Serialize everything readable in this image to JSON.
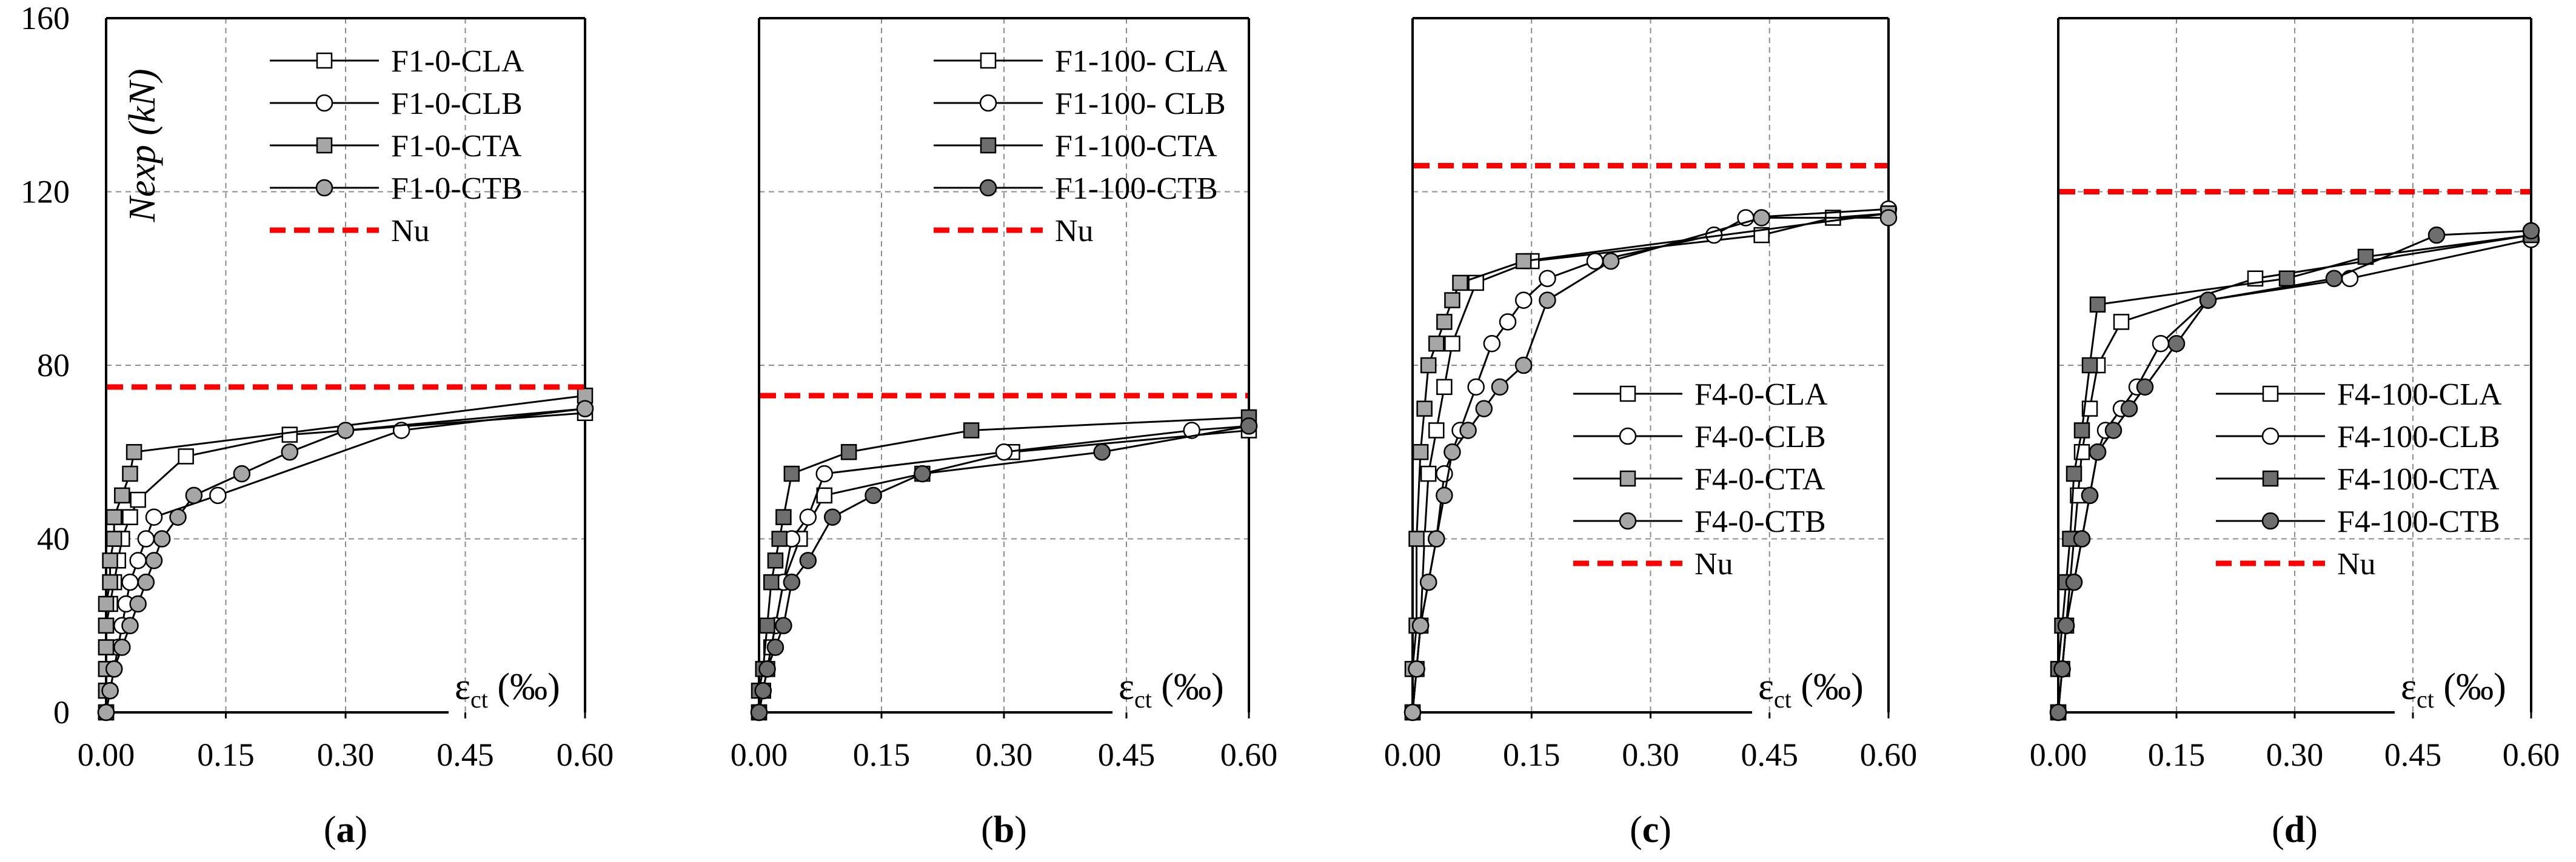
{
  "figure": {
    "y_axis_label": "Nexp (kN)",
    "x_axis_label_main": "ε",
    "x_axis_label_sub": "ct",
    "x_axis_label_unit": " (‰)",
    "colors": {
      "nu_line": "#ff0000",
      "grid": "#8c8c8c",
      "marker_light": "#ffffff",
      "marker_mid": "#a6a6a6",
      "marker_dark": "#6e6e6e"
    }
  },
  "chart_data": [
    {
      "type": "line",
      "panel_label": "(a)",
      "panel_letter": "a",
      "xlim": [
        0,
        0.6
      ],
      "ylim": [
        0,
        160
      ],
      "x_ticks": [
        "0.00",
        "0.15",
        "0.30",
        "0.45",
        "0.60"
      ],
      "y_ticks": [
        "0",
        "40",
        "80",
        "120",
        "160"
      ],
      "legend_position": "top-right",
      "series": [
        {
          "name": "F1-0-CLA",
          "marker": "square",
          "fill": "light",
          "x": [
            0.0,
            0.0,
            0.0,
            0.0,
            0.0,
            0.005,
            0.01,
            0.015,
            0.02,
            0.03,
            0.04,
            0.1,
            0.23,
            0.6
          ],
          "y": [
            0,
            5,
            10,
            15,
            20,
            25,
            30,
            35,
            40,
            45,
            49,
            59,
            64,
            69
          ]
        },
        {
          "name": "F1-0-CLB",
          "marker": "circle",
          "fill": "light",
          "x": [
            0.0,
            0.005,
            0.01,
            0.015,
            0.02,
            0.025,
            0.03,
            0.04,
            0.05,
            0.06,
            0.14,
            0.37,
            0.6
          ],
          "y": [
            0,
            5,
            10,
            15,
            20,
            25,
            30,
            35,
            40,
            45,
            50,
            65,
            70
          ]
        },
        {
          "name": "F1-0-CTA",
          "marker": "square",
          "fill": "mid",
          "x": [
            0.0,
            0.0,
            0.0,
            0.0,
            0.0,
            0.0,
            0.005,
            0.005,
            0.01,
            0.01,
            0.02,
            0.03,
            0.035,
            0.6
          ],
          "y": [
            0,
            5,
            10,
            15,
            20,
            25,
            30,
            35,
            40,
            45,
            50,
            55,
            60,
            73
          ]
        },
        {
          "name": "F1-0-CTB",
          "marker": "circle",
          "fill": "mid",
          "x": [
            0.0,
            0.005,
            0.01,
            0.02,
            0.03,
            0.04,
            0.05,
            0.06,
            0.07,
            0.09,
            0.11,
            0.17,
            0.23,
            0.3,
            0.6
          ],
          "y": [
            0,
            5,
            10,
            15,
            20,
            25,
            30,
            35,
            40,
            45,
            50,
            55,
            60,
            65,
            70
          ]
        }
      ],
      "nu": 75,
      "nu_label": "Nu"
    },
    {
      "type": "line",
      "panel_label": "(b)",
      "panel_letter": "b",
      "xlim": [
        0,
        0.6
      ],
      "ylim": [
        0,
        160
      ],
      "x_ticks": [
        "0.00",
        "0.15",
        "0.30",
        "0.45",
        "0.60"
      ],
      "y_ticks": [
        "0",
        "40",
        "80",
        "120",
        "160"
      ],
      "legend_position": "top-right",
      "series": [
        {
          "name": "F1-100- CLA",
          "marker": "square",
          "fill": "light",
          "x": [
            0.0,
            0.005,
            0.01,
            0.015,
            0.02,
            0.03,
            0.05,
            0.08,
            0.2,
            0.31,
            0.6
          ],
          "y": [
            0,
            5,
            10,
            15,
            20,
            30,
            40,
            50,
            55,
            60,
            65
          ]
        },
        {
          "name": "F1-100- CLB",
          "marker": "circle",
          "fill": "light",
          "x": [
            0.0,
            0.005,
            0.01,
            0.02,
            0.03,
            0.04,
            0.06,
            0.08,
            0.3,
            0.53,
            0.6
          ],
          "y": [
            0,
            5,
            10,
            20,
            30,
            40,
            45,
            55,
            60,
            65,
            66
          ]
        },
        {
          "name": "F1-100-CTA",
          "marker": "square",
          "fill": "dark",
          "x": [
            0.0,
            0.0,
            0.005,
            0.01,
            0.015,
            0.02,
            0.025,
            0.03,
            0.04,
            0.11,
            0.26,
            0.6
          ],
          "y": [
            0,
            5,
            10,
            20,
            30,
            35,
            40,
            45,
            55,
            60,
            65,
            68
          ]
        },
        {
          "name": "F1-100-CTB",
          "marker": "circle",
          "fill": "dark",
          "x": [
            0.0,
            0.005,
            0.01,
            0.02,
            0.03,
            0.04,
            0.06,
            0.09,
            0.14,
            0.2,
            0.42,
            0.6
          ],
          "y": [
            0,
            5,
            10,
            15,
            20,
            30,
            35,
            45,
            50,
            55,
            60,
            66
          ]
        }
      ],
      "nu": 73,
      "nu_label": "Nu"
    },
    {
      "type": "line",
      "panel_label": "(c)",
      "panel_letter": "c",
      "xlim": [
        0,
        0.6
      ],
      "ylim": [
        0,
        160
      ],
      "x_ticks": [
        "0.00",
        "0.15",
        "0.30",
        "0.45",
        "0.60"
      ],
      "y_ticks": [
        "0",
        "40",
        "80",
        "120",
        "160"
      ],
      "legend_position": "bottom-right",
      "series": [
        {
          "name": "F4-0-CLA",
          "marker": "square",
          "fill": "light",
          "x": [
            0.0,
            0.005,
            0.01,
            0.015,
            0.02,
            0.03,
            0.04,
            0.05,
            0.08,
            0.15,
            0.44,
            0.53,
            0.6
          ],
          "y": [
            0,
            10,
            20,
            40,
            55,
            65,
            75,
            85,
            99,
            104,
            110,
            114,
            115
          ]
        },
        {
          "name": "F4-0-CLB",
          "marker": "circle",
          "fill": "light",
          "x": [
            0.0,
            0.005,
            0.01,
            0.02,
            0.03,
            0.04,
            0.06,
            0.08,
            0.1,
            0.12,
            0.14,
            0.17,
            0.23,
            0.38,
            0.42,
            0.6
          ],
          "y": [
            0,
            10,
            20,
            30,
            40,
            55,
            65,
            75,
            85,
            90,
            95,
            100,
            104,
            110,
            114,
            116
          ]
        },
        {
          "name": "F4-0-CTA",
          "marker": "square",
          "fill": "mid",
          "x": [
            0.0,
            0.0,
            0.005,
            0.005,
            0.01,
            0.015,
            0.02,
            0.03,
            0.04,
            0.05,
            0.06,
            0.14,
            0.6
          ],
          "y": [
            0,
            10,
            20,
            40,
            60,
            70,
            80,
            85,
            90,
            95,
            99,
            104,
            115
          ]
        },
        {
          "name": "F4-0-CTB",
          "marker": "circle",
          "fill": "mid",
          "x": [
            0.0,
            0.005,
            0.01,
            0.02,
            0.03,
            0.04,
            0.05,
            0.07,
            0.09,
            0.11,
            0.14,
            0.17,
            0.25,
            0.44,
            0.6
          ],
          "y": [
            0,
            10,
            20,
            30,
            40,
            50,
            60,
            65,
            70,
            75,
            80,
            95,
            104,
            114,
            114
          ]
        }
      ],
      "nu": 126,
      "nu_label": "Nu"
    },
    {
      "type": "line",
      "panel_label": "(d)",
      "panel_letter": "d",
      "xlim": [
        0,
        0.6
      ],
      "ylim": [
        0,
        160
      ],
      "x_ticks": [
        "0.00",
        "0.15",
        "0.30",
        "0.45",
        "0.60"
      ],
      "y_ticks": [
        "0",
        "40",
        "80",
        "120",
        "160"
      ],
      "legend_position": "bottom-right",
      "series": [
        {
          "name": "F4-100-CLA",
          "marker": "square",
          "fill": "light",
          "x": [
            0.0,
            0.005,
            0.01,
            0.015,
            0.02,
            0.025,
            0.03,
            0.04,
            0.05,
            0.08,
            0.25,
            0.6
          ],
          "y": [
            0,
            10,
            20,
            30,
            40,
            50,
            60,
            70,
            80,
            90,
            100,
            110
          ]
        },
        {
          "name": "F4-100-CLB",
          "marker": "circle",
          "fill": "light",
          "x": [
            0.0,
            0.005,
            0.01,
            0.02,
            0.03,
            0.04,
            0.05,
            0.06,
            0.08,
            0.1,
            0.13,
            0.19,
            0.37,
            0.6
          ],
          "y": [
            0,
            10,
            20,
            30,
            40,
            50,
            60,
            65,
            70,
            75,
            85,
            95,
            100,
            109
          ]
        },
        {
          "name": "F4-100-CTA",
          "marker": "square",
          "fill": "dark",
          "x": [
            0.0,
            0.0,
            0.005,
            0.01,
            0.015,
            0.02,
            0.03,
            0.04,
            0.05,
            0.29,
            0.39,
            0.6
          ],
          "y": [
            0,
            10,
            20,
            30,
            40,
            55,
            65,
            80,
            94,
            100,
            105,
            110
          ]
        },
        {
          "name": "F4-100-CTB",
          "marker": "circle",
          "fill": "dark",
          "x": [
            0.0,
            0.005,
            0.01,
            0.02,
            0.03,
            0.04,
            0.05,
            0.07,
            0.09,
            0.11,
            0.15,
            0.19,
            0.35,
            0.48,
            0.6
          ],
          "y": [
            0,
            10,
            20,
            30,
            40,
            50,
            60,
            65,
            70,
            75,
            85,
            95,
            100,
            110,
            111
          ]
        }
      ],
      "nu": 120,
      "nu_label": "Nu"
    }
  ]
}
